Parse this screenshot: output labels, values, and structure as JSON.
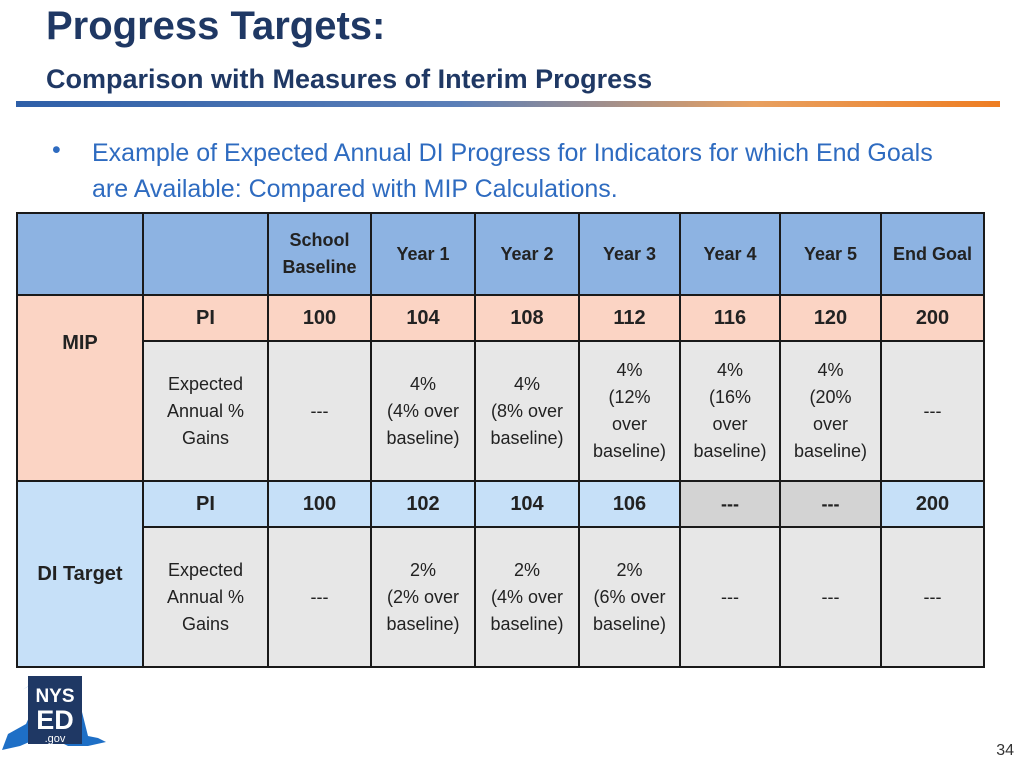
{
  "header": {
    "title": "Progress Targets:",
    "subtitle": "Comparison with Measures of Interim Progress"
  },
  "bullet": {
    "marker": "•",
    "text": "Example of Expected Annual DI Progress for Indicators for which End Goals are Available: Compared with MIP Calculations."
  },
  "table": {
    "columns": [
      {
        "lines": [
          "School",
          "Baseline"
        ]
      },
      {
        "lines": [
          "Year 1"
        ]
      },
      {
        "lines": [
          "Year 2"
        ]
      },
      {
        "lines": [
          "Year 3"
        ]
      },
      {
        "lines": [
          "Year 4"
        ]
      },
      {
        "lines": [
          "Year 5"
        ]
      },
      {
        "lines": [
          "End Goal"
        ]
      }
    ],
    "mip": {
      "label": "MIP",
      "pi_label": "PI",
      "pi": [
        "100",
        "104",
        "108",
        "112",
        "116",
        "120",
        "200"
      ],
      "gains_label": [
        "Expected",
        "Annual %",
        "Gains"
      ],
      "gains": [
        [
          "---"
        ],
        [
          "4%",
          "(4% over",
          "baseline)"
        ],
        [
          "4%",
          "(8% over",
          "baseline)"
        ],
        [
          "4%",
          "(12%",
          "over",
          "baseline)"
        ],
        [
          "4%",
          "(16%",
          "over",
          "baseline)"
        ],
        [
          "4%",
          "(20%",
          "over",
          "baseline)"
        ],
        [
          "---"
        ]
      ]
    },
    "di": {
      "label": "DI Target",
      "pi_label": "PI",
      "pi": [
        "100",
        "102",
        "104",
        "106",
        "---",
        "---",
        "200"
      ],
      "gains_label": [
        "Expected",
        "Annual %",
        "Gains"
      ],
      "gains": [
        [
          "---"
        ],
        [
          "2%",
          "(2% over",
          "baseline)"
        ],
        [
          "2%",
          "(4% over",
          "baseline)"
        ],
        [
          "2%",
          "(6% over",
          "baseline)"
        ],
        [
          "---"
        ],
        [
          "---"
        ],
        [
          "---"
        ]
      ]
    }
  },
  "logo": {
    "line1": "NYS",
    "line2": "ED",
    "line3": ".gov"
  },
  "page_number": "34",
  "colors": {
    "title": "#1f3864",
    "bullet": "#2e6bc0",
    "header_fill": "#8db3e2",
    "mip_fill": "#fbd4c4",
    "di_fill": "#c6e0f8",
    "gain_fill": "#e7e7e7",
    "grey_fill": "#d3d3d3",
    "logo_navy": "#1f3864",
    "logo_blue": "#1e6fc6"
  }
}
